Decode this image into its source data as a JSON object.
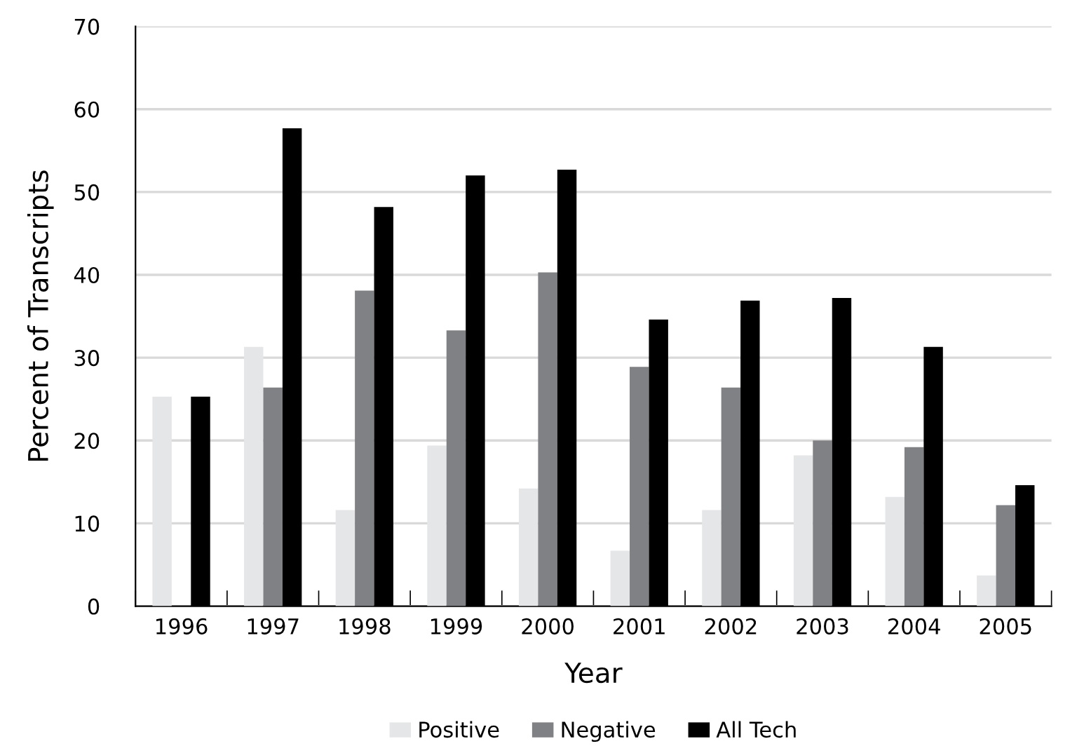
{
  "chart_data": {
    "type": "bar",
    "xlabel": "Year",
    "ylabel": "Percent of Transcripts",
    "categories": [
      "1996",
      "1997",
      "1998",
      "1999",
      "2000",
      "2001",
      "2002",
      "2003",
      "2004",
      "2005"
    ],
    "series": [
      {
        "name": "Positive",
        "color": "#e5e6e7",
        "values": [
          25.3,
          31.3,
          11.6,
          19.4,
          14.2,
          6.7,
          11.6,
          18.2,
          13.2,
          3.7
        ]
      },
      {
        "name": "Negative",
        "color": "#808184",
        "values": [
          0,
          26.4,
          38.1,
          33.3,
          40.3,
          28.9,
          26.4,
          20,
          19.2,
          12.2
        ]
      },
      {
        "name": "All Tech",
        "color": "#000000",
        "values": [
          25.3,
          57.7,
          48.2,
          52.0,
          52.7,
          34.6,
          36.9,
          37.2,
          31.3,
          14.6
        ]
      }
    ],
    "ylim": [
      0,
      70
    ],
    "yticks": [
      0,
      10,
      20,
      30,
      40,
      50,
      60,
      70
    ],
    "grid": "y",
    "legend": "bottom"
  }
}
